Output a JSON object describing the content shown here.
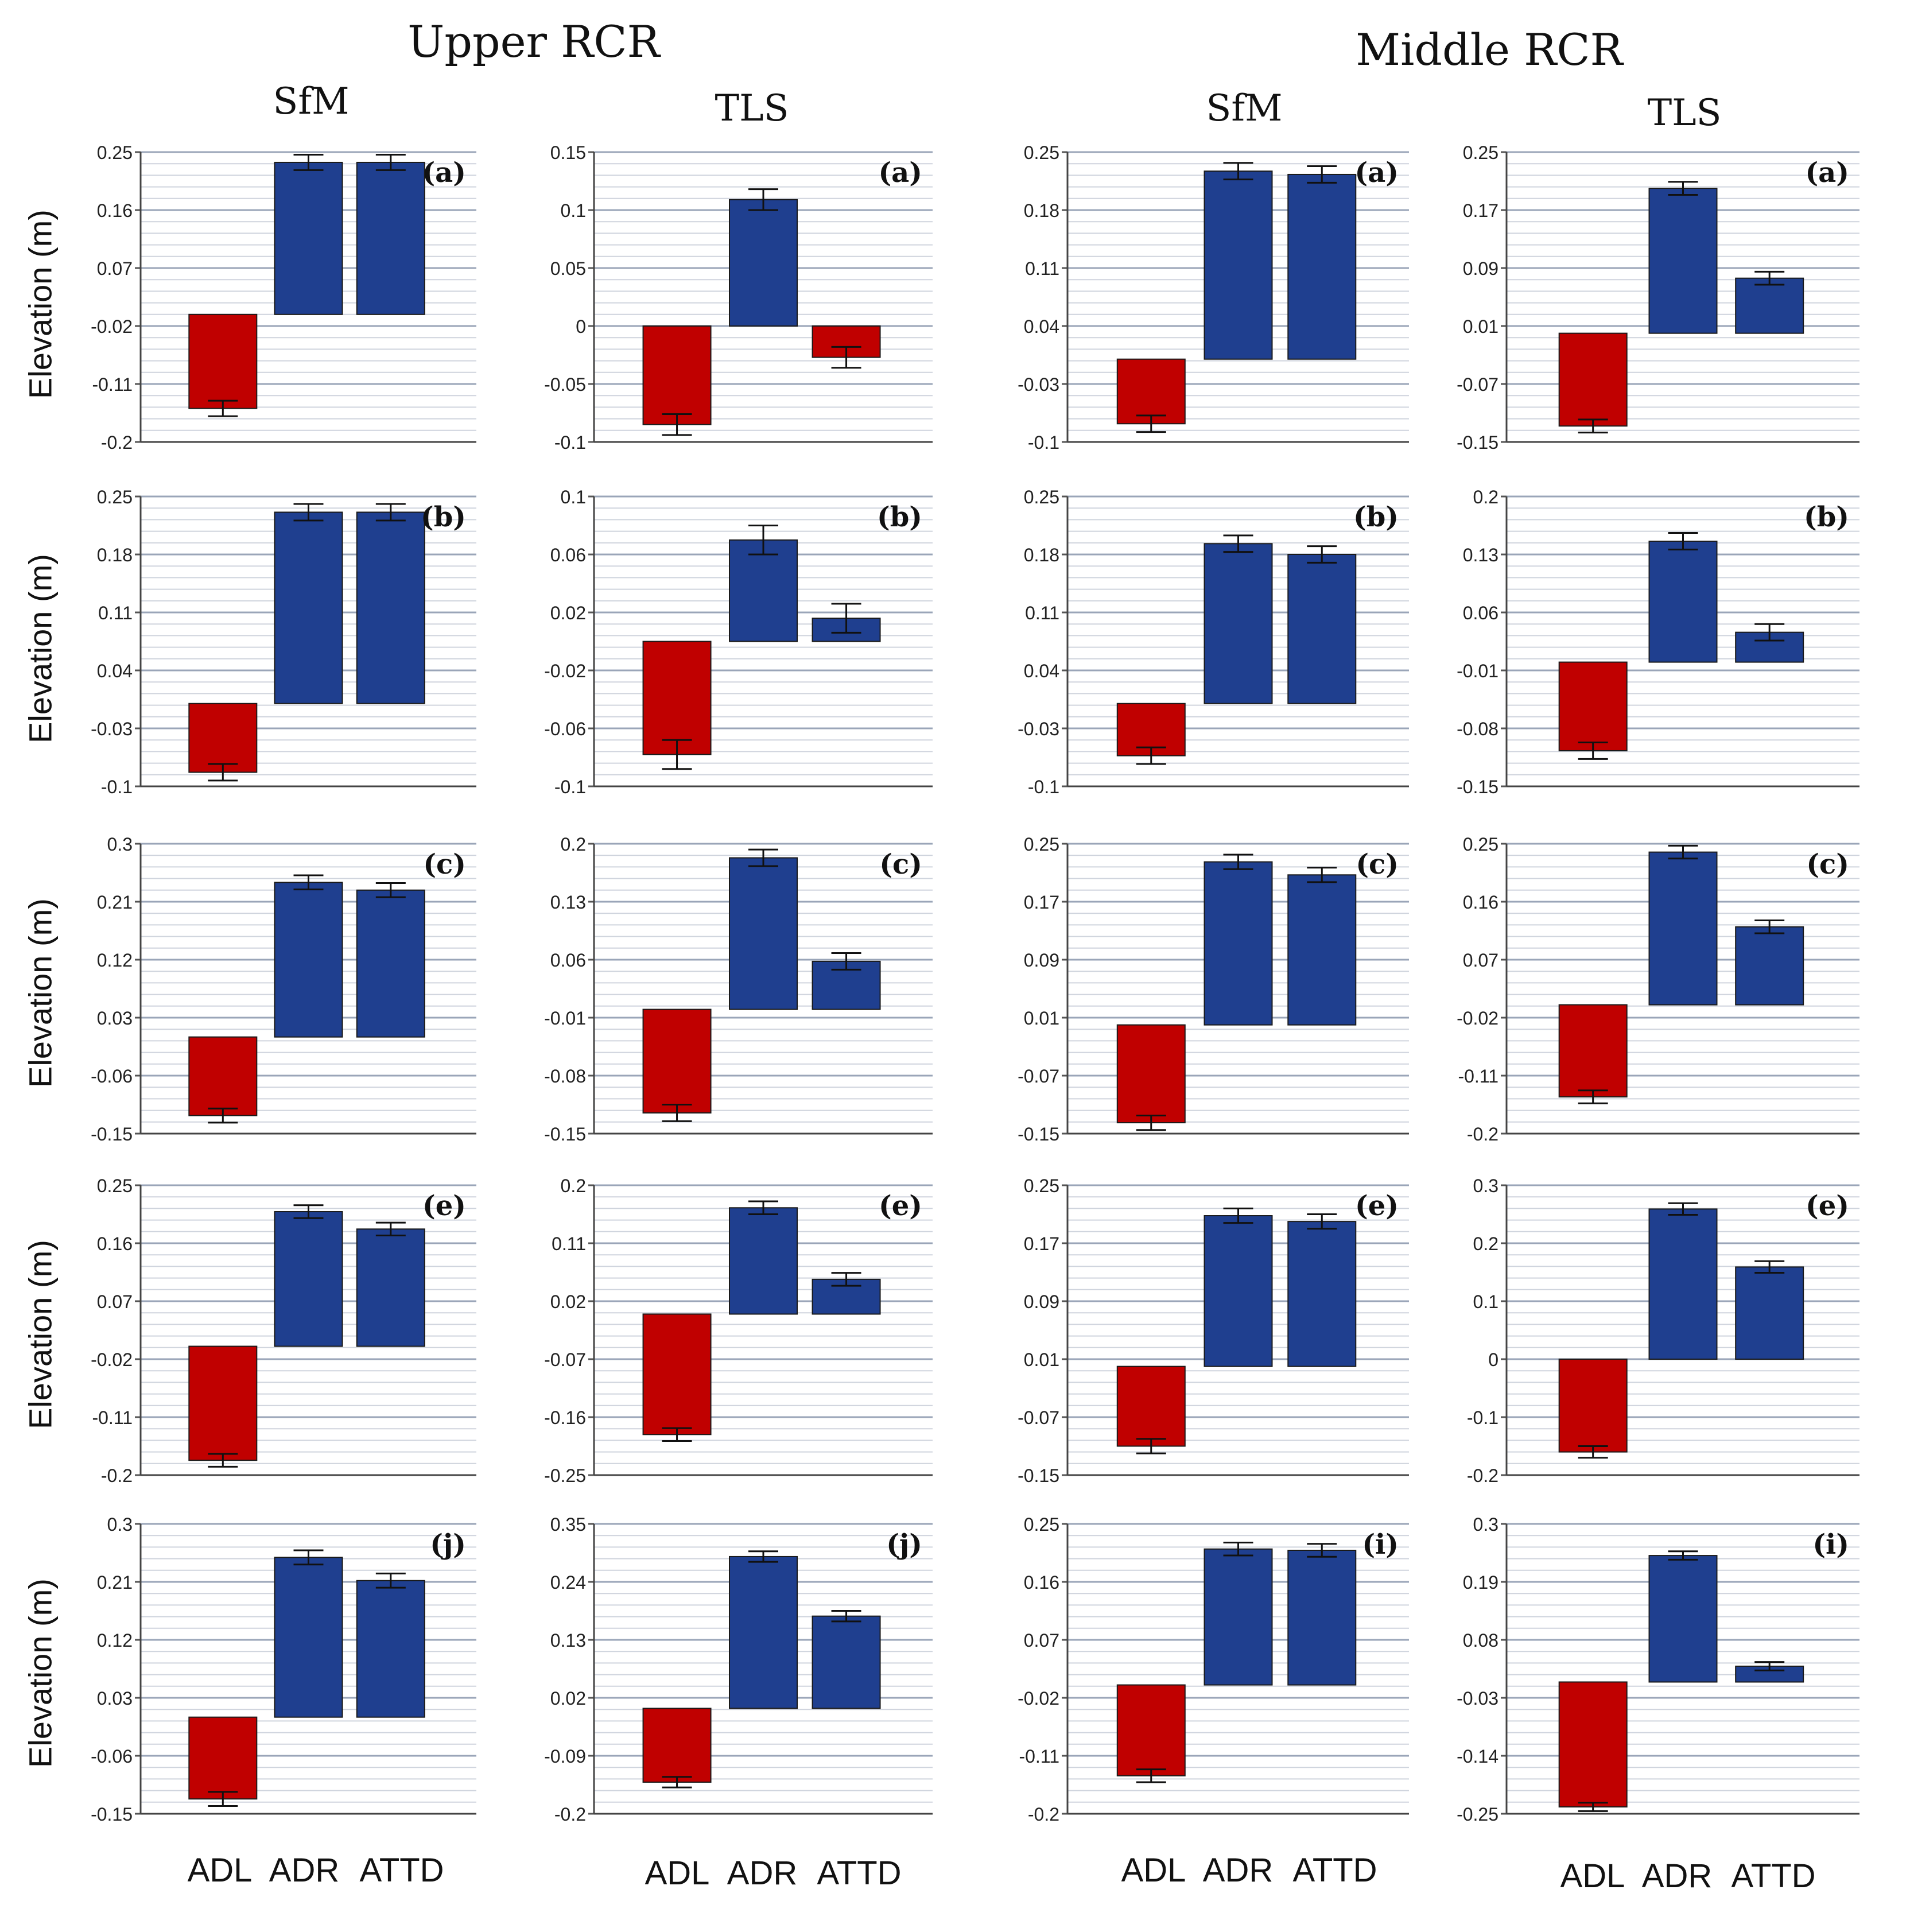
{
  "headings": {
    "upper": "Upper RCR",
    "middle": "Middle RCR",
    "methods": [
      "SfM",
      "TLS",
      "SfM",
      "TLS"
    ],
    "y_label": "Elevation (m)"
  },
  "categories": [
    "ADL",
    "ADR",
    "ATTD"
  ],
  "colors": {
    "negative": "#c00000",
    "positive": "#1f3f8f",
    "grid_major": "#9aa5b8",
    "grid_minor": "#cfd4dd"
  },
  "chart_data": [
    {
      "type": "bar",
      "group": "Upper RCR",
      "method": "SfM",
      "panel": "(a)",
      "ylim": [
        -0.2,
        0.25
      ],
      "ticks": [
        "0.25",
        "0.16",
        "0.07",
        "-0.02",
        "-0.11",
        "-0.2"
      ],
      "base": -0.002,
      "values": [
        -0.148,
        0.234,
        0.234
      ],
      "errors": [
        0.012,
        0.012,
        0.012
      ]
    },
    {
      "type": "bar",
      "group": "Upper RCR",
      "method": "TLS",
      "panel": "(a)",
      "ylim": [
        -0.1,
        0.15
      ],
      "ticks": [
        "0.15",
        "0.1",
        "0.05",
        "0",
        "-0.05",
        "-0.1"
      ],
      "base": 0,
      "values": [
        -0.085,
        0.109,
        -0.027
      ],
      "errors": [
        0.009,
        0.009,
        0.009
      ]
    },
    {
      "type": "bar",
      "group": "Middle RCR",
      "method": "SfM",
      "panel": "(a)",
      "ylim": [
        -0.1,
        0.25
      ],
      "ticks": [
        "0.25",
        "0.18",
        "0.11",
        "0.04",
        "-0.03",
        "-0.1"
      ],
      "base": 0.0,
      "values": [
        -0.078,
        0.227,
        0.223
      ],
      "errors": [
        0.01,
        0.01,
        0.01
      ]
    },
    {
      "type": "bar",
      "group": "Middle RCR",
      "method": "TLS",
      "panel": "(a)",
      "ylim": [
        -0.15,
        0.25
      ],
      "ticks": [
        "0.25",
        "0.17",
        "0.09",
        "0.01",
        "-0.07",
        "-0.15"
      ],
      "base": 0.0,
      "values": [
        -0.128,
        0.2,
        0.076
      ],
      "errors": [
        0.009,
        0.009,
        0.009
      ]
    },
    {
      "type": "bar",
      "group": "Upper RCR",
      "method": "SfM",
      "panel": "(b)",
      "ylim": [
        -0.1,
        0.25
      ],
      "ticks": [
        "0.25",
        "0.18",
        "0.11",
        "0.04",
        "-0.03",
        "-0.1"
      ],
      "base": 0.0,
      "values": [
        -0.083,
        0.231,
        0.231
      ],
      "errors": [
        0.01,
        0.01,
        0.01
      ]
    },
    {
      "type": "bar",
      "group": "Upper RCR",
      "method": "TLS",
      "panel": "(b)",
      "ylim": [
        -0.1,
        0.1
      ],
      "ticks": [
        "0.1",
        "0.06",
        "0.02",
        "-0.02",
        "-0.06",
        "-0.1"
      ],
      "base": 0.0,
      "values": [
        -0.078,
        0.07,
        0.016
      ],
      "errors": [
        0.01,
        0.01,
        0.01
      ]
    },
    {
      "type": "bar",
      "group": "Middle RCR",
      "method": "SfM",
      "panel": "(b)",
      "ylim": [
        -0.1,
        0.25
      ],
      "ticks": [
        "0.25",
        "0.18",
        "0.11",
        "0.04",
        "-0.03",
        "-0.1"
      ],
      "base": 0.0,
      "values": [
        -0.063,
        0.193,
        0.18
      ],
      "errors": [
        0.01,
        0.01,
        0.01
      ]
    },
    {
      "type": "bar",
      "group": "Middle RCR",
      "method": "TLS",
      "panel": "(b)",
      "ylim": [
        -0.15,
        0.2
      ],
      "ticks": [
        "0.2",
        "0.13",
        "0.06",
        "-0.01",
        "-0.08",
        "-0.15"
      ],
      "base": 0.0,
      "values": [
        -0.107,
        0.146,
        0.036
      ],
      "errors": [
        0.01,
        0.01,
        0.01
      ]
    },
    {
      "type": "bar",
      "group": "Upper RCR",
      "method": "SfM",
      "panel": "(c)",
      "ylim": [
        -0.15,
        0.3
      ],
      "ticks": [
        "0.3",
        "0.21",
        "0.12",
        "0.03",
        "-0.06",
        "-0.15"
      ],
      "base": 0.0,
      "values": [
        -0.122,
        0.24,
        0.228
      ],
      "errors": [
        0.011,
        0.011,
        0.011
      ]
    },
    {
      "type": "bar",
      "group": "Upper RCR",
      "method": "TLS",
      "panel": "(c)",
      "ylim": [
        -0.15,
        0.2
      ],
      "ticks": [
        "0.2",
        "0.13",
        "0.06",
        "-0.01",
        "-0.08",
        "-0.15"
      ],
      "base": 0.0,
      "values": [
        -0.125,
        0.183,
        0.058
      ],
      "errors": [
        0.01,
        0.01,
        0.01
      ]
    },
    {
      "type": "bar",
      "group": "Middle RCR",
      "method": "SfM",
      "panel": "(c)",
      "ylim": [
        -0.15,
        0.25
      ],
      "ticks": [
        "0.25",
        "0.17",
        "0.09",
        "0.01",
        "-0.07",
        "-0.15"
      ],
      "base": 0.0,
      "values": [
        -0.135,
        0.225,
        0.207
      ],
      "errors": [
        0.01,
        0.01,
        0.01
      ]
    },
    {
      "type": "bar",
      "group": "Middle RCR",
      "method": "TLS",
      "panel": "(c)",
      "ylim": [
        -0.2,
        0.25
      ],
      "ticks": [
        "0.25",
        "0.16",
        "0.07",
        "-0.02",
        "-0.11",
        "-0.2"
      ],
      "base": 0.0,
      "values": [
        -0.143,
        0.237,
        0.121
      ],
      "errors": [
        0.01,
        0.01,
        0.01
      ]
    },
    {
      "type": "bar",
      "group": "Upper RCR",
      "method": "SfM",
      "panel": "(e)",
      "ylim": [
        -0.2,
        0.25
      ],
      "ticks": [
        "0.25",
        "0.16",
        "0.07",
        "-0.02",
        "-0.11",
        "-0.2"
      ],
      "base": 0.0,
      "values": [
        -0.177,
        0.209,
        0.182
      ],
      "errors": [
        0.01,
        0.01,
        0.01
      ]
    },
    {
      "type": "bar",
      "group": "Upper RCR",
      "method": "TLS",
      "panel": "(e)",
      "ylim": [
        -0.25,
        0.2
      ],
      "ticks": [
        "0.2",
        "0.11",
        "0.02",
        "-0.07",
        "-0.16",
        "-0.25"
      ],
      "base": 0.0,
      "values": [
        -0.187,
        0.165,
        0.054
      ],
      "errors": [
        0.01,
        0.01,
        0.01
      ]
    },
    {
      "type": "bar",
      "group": "Middle RCR",
      "method": "SfM",
      "panel": "(e)",
      "ylim": [
        -0.15,
        0.25
      ],
      "ticks": [
        "0.25",
        "0.17",
        "0.09",
        "0.01",
        "-0.07",
        "-0.15"
      ],
      "base": 0.0,
      "values": [
        -0.11,
        0.208,
        0.2
      ],
      "errors": [
        0.01,
        0.01,
        0.01
      ]
    },
    {
      "type": "bar",
      "group": "Middle RCR",
      "method": "TLS",
      "panel": "(e)",
      "ylim": [
        -0.2,
        0.3
      ],
      "ticks": [
        "0.3",
        "0.2",
        "0.1",
        "0",
        "-0.1",
        "-0.2"
      ],
      "base": 0.0,
      "values": [
        -0.16,
        0.259,
        0.159
      ],
      "errors": [
        0.01,
        0.01,
        0.01
      ]
    },
    {
      "type": "bar",
      "group": "Upper RCR",
      "method": "SfM",
      "panel": "(j)",
      "ylim": [
        -0.15,
        0.3
      ],
      "ticks": [
        "0.3",
        "0.21",
        "0.12",
        "0.03",
        "-0.06",
        "-0.15"
      ],
      "base": 0.0,
      "values": [
        -0.127,
        0.248,
        0.212
      ],
      "errors": [
        0.011,
        0.011,
        0.011
      ]
    },
    {
      "type": "bar",
      "group": "Upper RCR",
      "method": "TLS",
      "panel": "(j)",
      "ylim": [
        -0.2,
        0.35
      ],
      "ticks": [
        "0.35",
        "0.24",
        "0.13",
        "0.02",
        "-0.09",
        "-0.2"
      ],
      "base": 0.0,
      "values": [
        -0.14,
        0.288,
        0.175
      ],
      "errors": [
        0.01,
        0.01,
        0.01
      ]
    },
    {
      "type": "bar",
      "group": "Middle RCR",
      "method": "SfM",
      "panel": "(i)",
      "ylim": [
        -0.2,
        0.25
      ],
      "ticks": [
        "0.25",
        "0.16",
        "0.07",
        "-0.02",
        "-0.11",
        "-0.2"
      ],
      "base": 0.0,
      "values": [
        -0.141,
        0.211,
        0.209
      ],
      "errors": [
        0.01,
        0.01,
        0.01
      ]
    },
    {
      "type": "bar",
      "group": "Middle RCR",
      "method": "TLS",
      "panel": "(i)",
      "ylim": [
        -0.25,
        0.3
      ],
      "ticks": [
        "0.3",
        "0.19",
        "0.08",
        "-0.03",
        "-0.14",
        "-0.25"
      ],
      "base": 0.0,
      "values": [
        -0.237,
        0.24,
        0.03
      ],
      "errors": [
        0.008,
        0.008,
        0.008
      ]
    }
  ]
}
